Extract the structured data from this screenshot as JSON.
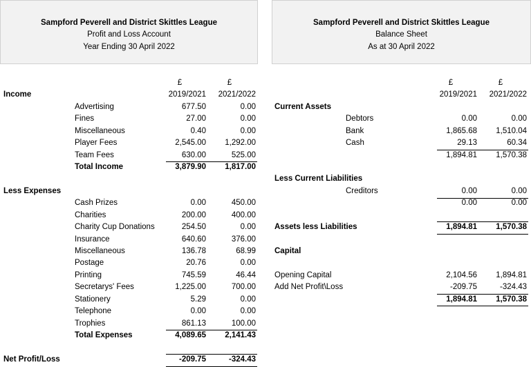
{
  "profit_loss": {
    "header": {
      "org": "Sampford Peverell and District Skittles League",
      "title": "Profit and Loss Account",
      "period": "Year Ending 30 April 2022"
    },
    "currency": [
      "£",
      "£"
    ],
    "columns": [
      "2019/2021",
      "2021/2022"
    ],
    "income": {
      "label": "Income",
      "rows": [
        {
          "label": "Advertising",
          "values": [
            "677.50",
            "0.00"
          ]
        },
        {
          "label": "Fines",
          "values": [
            "27.00",
            "0.00"
          ]
        },
        {
          "label": "Miscellaneous",
          "values": [
            "0.40",
            "0.00"
          ]
        },
        {
          "label": "Player Fees",
          "values": [
            "2,545.00",
            "1,292.00"
          ]
        },
        {
          "label": "Team Fees",
          "values": [
            "630.00",
            "525.00"
          ]
        }
      ],
      "total": {
        "label": "Total Income",
        "values": [
          "3,879.90",
          "1,817.00"
        ]
      }
    },
    "expenses": {
      "label": "Less Expenses",
      "rows": [
        {
          "label": "Cash Prizes",
          "values": [
            "0.00",
            "450.00"
          ]
        },
        {
          "label": "Charities",
          "values": [
            "200.00",
            "400.00"
          ]
        },
        {
          "label": "Charity Cup Donations",
          "values": [
            "254.50",
            "0.00"
          ]
        },
        {
          "label": "Insurance",
          "values": [
            "640.60",
            "376.00"
          ]
        },
        {
          "label": "Miscellaneous",
          "values": [
            "136.78",
            "68.99"
          ]
        },
        {
          "label": "Postage",
          "values": [
            "20.76",
            "0.00"
          ]
        },
        {
          "label": "Printing",
          "values": [
            "745.59",
            "46.44"
          ]
        },
        {
          "label": "Secretarys' Fees",
          "values": [
            "1,225.00",
            "700.00"
          ]
        },
        {
          "label": "Stationery",
          "values": [
            "5.29",
            "0.00"
          ]
        },
        {
          "label": "Telephone",
          "values": [
            "0.00",
            "0.00"
          ]
        },
        {
          "label": "Trophies",
          "values": [
            "861.13",
            "100.00"
          ]
        }
      ],
      "total": {
        "label": "Total Expenses",
        "values": [
          "4,089.65",
          "2,141.43"
        ]
      }
    },
    "net": {
      "label": "Net Profit/Loss",
      "values": [
        "-209.75",
        "-324.43"
      ]
    }
  },
  "balance_sheet": {
    "header": {
      "org": "Sampford Peverell and District Skittles League",
      "title": "Balance Sheet",
      "period": "As at 30 April 2022"
    },
    "currency": [
      "£",
      "£"
    ],
    "columns": [
      "2019/2021",
      "2021/2022"
    ],
    "current_assets": {
      "label": "Current Assets",
      "rows": [
        {
          "label": "Debtors",
          "values": [
            "0.00",
            "0.00"
          ]
        },
        {
          "label": "Bank",
          "values": [
            "1,865.68",
            "1,510.04"
          ]
        },
        {
          "label": "Cash",
          "values": [
            "29.13",
            "60.34"
          ]
        }
      ],
      "subtotal": [
        "1,894.81",
        "1,570.38"
      ]
    },
    "current_liabilities": {
      "label": "Less Current Liabilities",
      "rows": [
        {
          "label": "Creditors",
          "values": [
            "0.00",
            "0.00"
          ]
        }
      ],
      "subtotal": [
        "0.00",
        "0.00"
      ]
    },
    "net_assets": {
      "label": "Assets less Liabilities",
      "values": [
        "1,894.81",
        "1,570.38"
      ]
    },
    "capital": {
      "label": "Capital",
      "rows": [
        {
          "label": "Opening Capital",
          "values": [
            "2,104.56",
            "1,894.81"
          ]
        },
        {
          "label": "Add Net Profit\\Loss",
          "values": [
            "-209.75",
            "-324.43"
          ]
        }
      ],
      "total": [
        "1,894.81",
        "1,570.38"
      ]
    }
  }
}
